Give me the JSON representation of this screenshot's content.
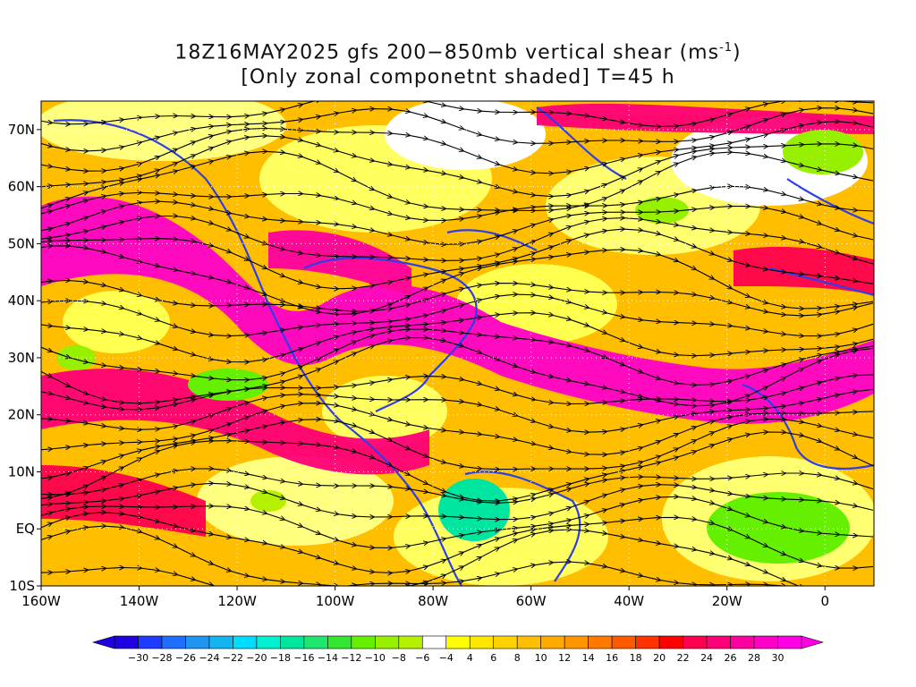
{
  "title": {
    "line1_prefix": "18Z16MAY2025 gfs 200−850mb vertical shear (ms",
    "line1_sup": "-1",
    "line1_suffix": ")",
    "line2": "[Only zonal componetnt shaded] T=45 h"
  },
  "map": {
    "lon_range": [
      -160,
      10
    ],
    "lat_range": [
      -10,
      75
    ],
    "lat_ticks": [
      {
        "value": 70,
        "label": "70N"
      },
      {
        "value": 60,
        "label": "60N"
      },
      {
        "value": 50,
        "label": "50N"
      },
      {
        "value": 40,
        "label": "40N"
      },
      {
        "value": 30,
        "label": "30N"
      },
      {
        "value": 20,
        "label": "20N"
      },
      {
        "value": 10,
        "label": "10N"
      },
      {
        "value": 0,
        "label": "EQ"
      },
      {
        "value": -10,
        "label": "10S"
      }
    ],
    "lon_ticks": [
      {
        "value": -160,
        "label": "160W"
      },
      {
        "value": -140,
        "label": "140W"
      },
      {
        "value": -120,
        "label": "120W"
      },
      {
        "value": -100,
        "label": "100W"
      },
      {
        "value": -80,
        "label": "80W"
      },
      {
        "value": -60,
        "label": "60W"
      },
      {
        "value": -40,
        "label": "40W"
      },
      {
        "value": -20,
        "label": "20W"
      },
      {
        "value": 0,
        "label": "0"
      }
    ],
    "colors": {
      "coastline": "#2d3fe6",
      "streamline": "#000000",
      "contour": "#9b20b0",
      "grid": "#ffffff"
    }
  },
  "colorbar": {
    "labels": [
      "-30",
      "-28",
      "-26",
      "-24",
      "-22",
      "-20",
      "-18",
      "-16",
      "-14",
      "-12",
      "-10",
      "-8",
      "-6",
      "-4",
      "4",
      "6",
      "8",
      "10",
      "12",
      "14",
      "16",
      "18",
      "20",
      "22",
      "24",
      "26",
      "28",
      "30"
    ],
    "colors": [
      "#2000e0",
      "#1e3cff",
      "#1e6eff",
      "#1e96f0",
      "#14b4f0",
      "#00dcff",
      "#00f0d0",
      "#00e6a0",
      "#20e670",
      "#32e632",
      "#64f000",
      "#96f000",
      "#b4f000",
      "#ffffff",
      "#ffff00",
      "#ffe600",
      "#ffd200",
      "#ffbe00",
      "#ffaa00",
      "#ff9600",
      "#ff7800",
      "#ff5a00",
      "#ff3200",
      "#ff0000",
      "#ff0050",
      "#ff0078",
      "#ff00a0",
      "#ff00c8",
      "#ff00e6"
    ]
  }
}
